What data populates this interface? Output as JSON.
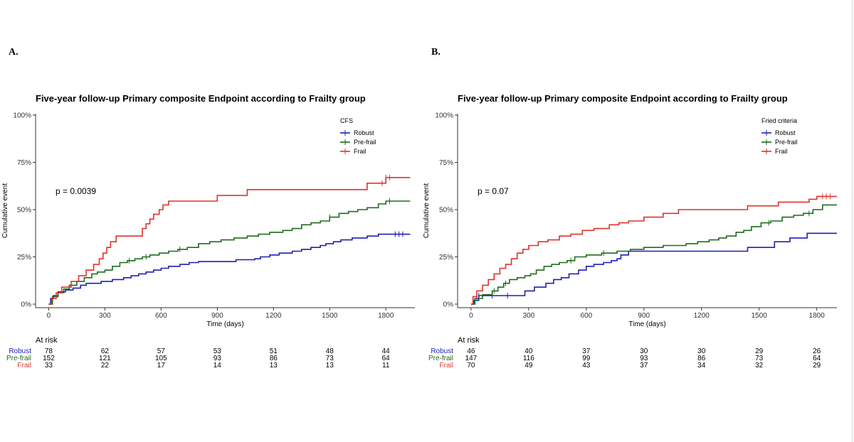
{
  "panels": [
    {
      "label": "A."
    },
    {
      "label": "B."
    }
  ],
  "colors": {
    "robust": "#1f1fb4",
    "prefrail": "#1e6b1e",
    "frail": "#e0332a",
    "axis": "#333333",
    "text": "#000000"
  },
  "chart_data": [
    {
      "type": "line",
      "step": true,
      "title": "Five-year follow-up Primary composite Endpoint according to Frailty group",
      "xlabel": "Time (days)",
      "ylabel": "Cumulative event",
      "xlim": [
        -70,
        1955
      ],
      "ylim": [
        0,
        1
      ],
      "x_ticks": [
        0,
        300,
        600,
        900,
        1200,
        1500,
        1800
      ],
      "x_tick_labels": [
        "0",
        "300",
        "600",
        "900",
        "1200",
        "1500",
        "1800"
      ],
      "y_ticks": [
        0,
        0.25,
        0.5,
        0.75,
        1.0
      ],
      "y_tick_labels": [
        "0%",
        "25%",
        "50%",
        "75%",
        "100%"
      ],
      "annotation": "p = 0.0039",
      "legend": {
        "title": "CFS",
        "position": "top-right",
        "entries": [
          "Robust",
          "Pre-frail",
          "Frail"
        ]
      },
      "series": [
        {
          "name": "Robust",
          "color_key": "robust",
          "x": [
            0,
            10,
            25,
            50,
            90,
            130,
            170,
            200,
            280,
            340,
            400,
            440,
            480,
            520,
            560,
            600,
            640,
            700,
            750,
            800,
            900,
            1000,
            1100,
            1130,
            1180,
            1230,
            1300,
            1350,
            1400,
            1450,
            1480,
            1520,
            1560,
            1620,
            1700,
            1760,
            1850,
            1930
          ],
          "y": [
            0,
            0.03,
            0.045,
            0.065,
            0.075,
            0.085,
            0.1,
            0.11,
            0.12,
            0.13,
            0.14,
            0.15,
            0.16,
            0.17,
            0.18,
            0.19,
            0.2,
            0.21,
            0.22,
            0.225,
            0.225,
            0.235,
            0.24,
            0.25,
            0.26,
            0.27,
            0.28,
            0.29,
            0.3,
            0.31,
            0.32,
            0.33,
            0.34,
            0.35,
            0.36,
            0.37,
            0.37,
            0.37
          ],
          "censor_x": [
            1850,
            1870,
            1890
          ]
        },
        {
          "name": "Pre-frail",
          "color_key": "prefrail",
          "x": [
            0,
            20,
            50,
            80,
            110,
            150,
            190,
            230,
            260,
            300,
            340,
            380,
            420,
            460,
            500,
            540,
            590,
            640,
            690,
            740,
            800,
            860,
            920,
            990,
            1060,
            1120,
            1180,
            1250,
            1300,
            1350,
            1400,
            1450,
            1500,
            1550,
            1600,
            1650,
            1700,
            1760,
            1800,
            1930
          ],
          "y": [
            0,
            0.04,
            0.06,
            0.08,
            0.1,
            0.12,
            0.14,
            0.16,
            0.17,
            0.18,
            0.2,
            0.22,
            0.23,
            0.24,
            0.25,
            0.26,
            0.27,
            0.28,
            0.29,
            0.3,
            0.32,
            0.33,
            0.34,
            0.35,
            0.36,
            0.37,
            0.38,
            0.39,
            0.4,
            0.42,
            0.43,
            0.44,
            0.46,
            0.48,
            0.49,
            0.5,
            0.51,
            0.53,
            0.545,
            0.545
          ],
          "censor_x": [
            430,
            520,
            700,
            1500,
            1820
          ]
        },
        {
          "name": "Frail",
          "color_key": "frail",
          "x": [
            0,
            15,
            40,
            70,
            120,
            160,
            200,
            240,
            270,
            290,
            310,
            330,
            360,
            500,
            520,
            540,
            560,
            590,
            610,
            640,
            700,
            820,
            900,
            1060,
            1200,
            1350,
            1480,
            1660,
            1700,
            1750,
            1800,
            1930
          ],
          "y": [
            0,
            0.03,
            0.06,
            0.09,
            0.12,
            0.15,
            0.18,
            0.21,
            0.24,
            0.27,
            0.3,
            0.33,
            0.36,
            0.4,
            0.425,
            0.45,
            0.475,
            0.5,
            0.525,
            0.545,
            0.545,
            0.545,
            0.575,
            0.606,
            0.606,
            0.606,
            0.606,
            0.606,
            0.64,
            0.64,
            0.67,
            0.67
          ],
          "censor_x": [
            1780,
            1800,
            1820
          ]
        }
      ],
      "risk_table": {
        "title": "At risk",
        "x": [
          0,
          300,
          600,
          900,
          1200,
          1500,
          1800
        ],
        "rows": [
          {
            "label": "Robust",
            "color_key": "robust",
            "values": [
              "78",
              "62",
              "57",
              "53",
              "51",
              "48",
              "44"
            ]
          },
          {
            "label": "Pre-frail",
            "color_key": "prefrail",
            "values": [
              "152",
              "121",
              "105",
              "93",
              "86",
              "73",
              "64"
            ]
          },
          {
            "label": "Frail",
            "color_key": "frail",
            "values": [
              "33",
              "22",
              "17",
              "14",
              "13",
              "13",
              "11"
            ]
          }
        ]
      }
    },
    {
      "type": "line",
      "step": true,
      "title": "Five-year follow-up Primary composite Endpoint according to Frailty group",
      "xlabel": "Time (days)",
      "ylabel": "Cumulative event",
      "xlim": [
        -70,
        1905
      ],
      "ylim": [
        0,
        1
      ],
      "x_ticks": [
        0,
        300,
        600,
        900,
        1200,
        1500,
        1800
      ],
      "x_tick_labels": [
        "0",
        "300",
        "600",
        "900",
        "1200",
        "1500",
        "1800"
      ],
      "y_ticks": [
        0,
        0.25,
        0.5,
        0.75,
        1.0
      ],
      "y_tick_labels": [
        "0%",
        "25%",
        "50%",
        "75%",
        "100%"
      ],
      "annotation": "p = 0.07",
      "legend": {
        "title": "Fried criteria",
        "position": "top-right",
        "entries": [
          "Robust",
          "Pre-frail",
          "Frail"
        ]
      },
      "series": [
        {
          "name": "Robust",
          "color_key": "robust",
          "x": [
            0,
            15,
            40,
            230,
            280,
            330,
            390,
            430,
            470,
            510,
            560,
            600,
            640,
            690,
            730,
            760,
            780,
            820,
            1000,
            1440,
            1580,
            1660,
            1750,
            1905
          ],
          "y": [
            0,
            0.02,
            0.045,
            0.045,
            0.07,
            0.09,
            0.11,
            0.13,
            0.14,
            0.16,
            0.18,
            0.2,
            0.21,
            0.22,
            0.23,
            0.24,
            0.26,
            0.28,
            0.28,
            0.3,
            0.33,
            0.35,
            0.375,
            0.375
          ],
          "censor_x": [
            40,
            110,
            190
          ]
        },
        {
          "name": "Pre-frail",
          "color_key": "prefrail",
          "x": [
            0,
            20,
            60,
            110,
            140,
            170,
            200,
            240,
            280,
            310,
            340,
            380,
            420,
            460,
            500,
            540,
            600,
            680,
            760,
            830,
            900,
            1000,
            1120,
            1180,
            1240,
            1290,
            1330,
            1380,
            1420,
            1460,
            1510,
            1560,
            1620,
            1680,
            1730,
            1780,
            1830,
            1905
          ],
          "y": [
            0,
            0.03,
            0.05,
            0.07,
            0.09,
            0.11,
            0.13,
            0.14,
            0.15,
            0.16,
            0.18,
            0.2,
            0.21,
            0.22,
            0.23,
            0.25,
            0.26,
            0.27,
            0.28,
            0.29,
            0.3,
            0.31,
            0.32,
            0.33,
            0.34,
            0.35,
            0.36,
            0.38,
            0.39,
            0.41,
            0.43,
            0.44,
            0.46,
            0.47,
            0.48,
            0.5,
            0.525,
            0.525
          ],
          "censor_x": [
            30,
            120,
            180,
            520,
            690,
            1550,
            1760
          ]
        },
        {
          "name": "Frail",
          "color_key": "frail",
          "x": [
            0,
            10,
            30,
            60,
            90,
            120,
            150,
            180,
            210,
            240,
            270,
            300,
            350,
            400,
            460,
            520,
            580,
            640,
            720,
            770,
            820,
            900,
            1000,
            1080,
            1440,
            1600,
            1760,
            1800,
            1905
          ],
          "y": [
            0,
            0.04,
            0.07,
            0.1,
            0.13,
            0.16,
            0.19,
            0.21,
            0.24,
            0.27,
            0.29,
            0.31,
            0.33,
            0.34,
            0.36,
            0.37,
            0.39,
            0.4,
            0.42,
            0.43,
            0.44,
            0.46,
            0.48,
            0.5,
            0.52,
            0.54,
            0.555,
            0.57,
            0.57
          ],
          "censor_x": [
            1830,
            1850,
            1870
          ]
        }
      ],
      "risk_table": {
        "title": "At risk",
        "x": [
          0,
          300,
          600,
          900,
          1200,
          1500,
          1800
        ],
        "rows": [
          {
            "label": "Robust",
            "color_key": "robust",
            "values": [
              "46",
              "40",
              "37",
              "30",
              "30",
              "29",
              "26"
            ]
          },
          {
            "label": "Pre-frail",
            "color_key": "prefrail",
            "values": [
              "147",
              "116",
              "99",
              "93",
              "86",
              "73",
              "64"
            ]
          },
          {
            "label": "Frail",
            "color_key": "frail",
            "values": [
              "70",
              "49",
              "43",
              "37",
              "34",
              "32",
              "29"
            ]
          }
        ]
      }
    }
  ]
}
